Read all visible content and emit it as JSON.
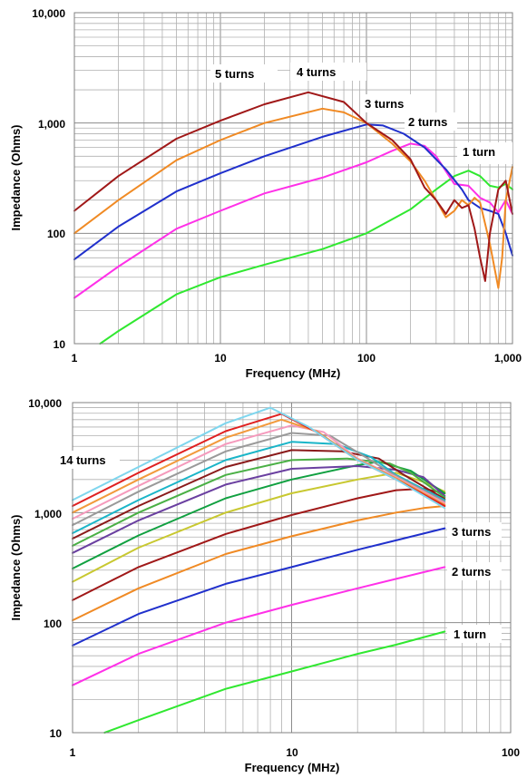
{
  "chart_data": [
    {
      "type": "line",
      "x_scale": "log",
      "y_scale": "log",
      "xlim": [
        1,
        1000
      ],
      "ylim": [
        10,
        10000
      ],
      "xlabel": "Frequency (MHz)",
      "ylabel": "Impedance (Ohms)",
      "grid": true,
      "x_tick_labels": [
        "1",
        "10",
        "100",
        "1,000"
      ],
      "y_tick_labels": [
        "10",
        "100",
        "1,000",
        "10,000"
      ],
      "annotations": [
        "5 turns",
        "4 turns",
        "3 turns",
        "2 turns",
        "1 turn"
      ],
      "series": [
        {
          "name": "5 turns",
          "color": "#a01818",
          "x": [
            1,
            2,
            5,
            10,
            20,
            40,
            70,
            100,
            150,
            200,
            250,
            300,
            350,
            400,
            450,
            500,
            550,
            600,
            650,
            700,
            800,
            900,
            1000
          ],
          "y": [
            160,
            330,
            720,
            1050,
            1480,
            1900,
            1550,
            1000,
            700,
            470,
            260,
            200,
            150,
            200,
            170,
            180,
            110,
            60,
            37,
            100,
            250,
            300,
            150
          ]
        },
        {
          "name": "4 turns",
          "color": "#f08a24",
          "x": [
            1,
            2,
            5,
            10,
            20,
            50,
            70,
            100,
            150,
            200,
            250,
            300,
            350,
            400,
            450,
            500,
            550,
            600,
            700,
            800,
            850,
            900,
            1000
          ],
          "y": [
            100,
            200,
            460,
            700,
            1000,
            1350,
            1250,
            1000,
            650,
            450,
            300,
            200,
            140,
            160,
            200,
            180,
            210,
            190,
            80,
            32,
            60,
            200,
            400
          ]
        },
        {
          "name": "3 turns",
          "color": "#2030cc",
          "x": [
            1,
            2,
            5,
            10,
            20,
            50,
            100,
            130,
            180,
            250,
            350,
            450,
            500,
            600,
            700,
            800,
            900,
            1000
          ],
          "y": [
            58,
            115,
            240,
            350,
            500,
            750,
            970,
            950,
            800,
            600,
            380,
            250,
            200,
            170,
            160,
            150,
            100,
            63
          ]
        },
        {
          "name": "2 turns",
          "color": "#ff30e8",
          "x": [
            1,
            2,
            5,
            10,
            20,
            50,
            100,
            150,
            200,
            250,
            300,
            400,
            500,
            600,
            700,
            800,
            900,
            1000
          ],
          "y": [
            26,
            50,
            110,
            160,
            230,
            320,
            440,
            560,
            650,
            620,
            500,
            280,
            270,
            210,
            190,
            155,
            200,
            150
          ]
        },
        {
          "name": "1 turn",
          "color": "#30e830",
          "x": [
            1.5,
            2,
            5,
            10,
            20,
            50,
            100,
            200,
            300,
            400,
            500,
            600,
            700,
            800,
            900,
            1000
          ],
          "y": [
            10,
            13,
            28,
            40,
            52,
            72,
            100,
            165,
            250,
            330,
            370,
            330,
            270,
            260,
            280,
            250
          ]
        }
      ]
    },
    {
      "type": "line",
      "x_scale": "log",
      "y_scale": "log",
      "xlim": [
        1,
        100
      ],
      "ylim": [
        10,
        10000
      ],
      "xlabel": "Frequency (MHz)",
      "ylabel": "Impedance (Ohms)",
      "grid": true,
      "x_tick_labels": [
        "1",
        "10",
        "100"
      ],
      "y_tick_labels": [
        "10",
        "100",
        "1,000",
        "10,000"
      ],
      "annotations": [
        "14 turns",
        "3 turns",
        "2 turns",
        "1 turn"
      ],
      "series": [
        {
          "name": "14 turns",
          "color": "#7fd6ee",
          "x": [
            1,
            2,
            5,
            8,
            12,
            20,
            30,
            50
          ],
          "y": [
            1300,
            2600,
            6500,
            9000,
            6000,
            3000,
            2000,
            1100
          ]
        },
        {
          "color": "#e02020",
          "x": [
            1,
            2,
            5,
            9,
            13,
            20,
            30,
            50
          ],
          "y": [
            1150,
            2300,
            5500,
            7900,
            5400,
            3000,
            2000,
            1150
          ]
        },
        {
          "color": "#f29a3c",
          "x": [
            1,
            2,
            5,
            9,
            13,
            20,
            30,
            50
          ],
          "y": [
            1000,
            2000,
            4800,
            7000,
            5500,
            3050,
            2050,
            1180
          ]
        },
        {
          "color": "#f59abc",
          "x": [
            1,
            2,
            5,
            10,
            14,
            20,
            30,
            50
          ],
          "y": [
            880,
            1750,
            4200,
            6200,
            5400,
            3100,
            2100,
            1220
          ]
        },
        {
          "color": "#9a9a9a",
          "x": [
            1,
            2,
            5,
            10,
            15,
            22,
            30,
            50
          ],
          "y": [
            770,
            1550,
            3600,
            5300,
            5000,
            3150,
            2150,
            1260
          ]
        },
        {
          "color": "#1ab5c8",
          "x": [
            1,
            2,
            5,
            10,
            16,
            23,
            30,
            50
          ],
          "y": [
            650,
            1300,
            3000,
            4400,
            4200,
            3200,
            2200,
            1300
          ]
        },
        {
          "color": "#8a1a1a",
          "x": [
            1,
            2,
            5,
            10,
            17,
            25,
            32,
            50
          ],
          "y": [
            580,
            1150,
            2600,
            3700,
            3600,
            3100,
            2250,
            1330
          ]
        },
        {
          "color": "#4ab045",
          "x": [
            1,
            2,
            5,
            10,
            18,
            28,
            35,
            50
          ],
          "y": [
            500,
            1000,
            2200,
            3000,
            3100,
            2800,
            2300,
            1380
          ]
        },
        {
          "color": "#6a3fa0",
          "x": [
            1,
            2,
            5,
            10,
            20,
            30,
            40,
            50
          ],
          "y": [
            430,
            850,
            1800,
            2500,
            2650,
            2450,
            2100,
            1420
          ]
        },
        {
          "color": "#10a040",
          "x": [
            1,
            2,
            5,
            10,
            20,
            25,
            35,
            50
          ],
          "y": [
            310,
            620,
            1350,
            2000,
            2700,
            2900,
            2400,
            1500
          ]
        },
        {
          "color": "#c8c830",
          "x": [
            1,
            2,
            5,
            10,
            20,
            30,
            40,
            50
          ],
          "y": [
            235,
            480,
            1000,
            1500,
            2000,
            2300,
            1900,
            1550
          ]
        },
        {
          "color": "#a01818",
          "x": [
            1,
            2,
            5,
            10,
            20,
            30,
            40,
            50
          ],
          "y": [
            160,
            320,
            640,
            950,
            1350,
            1600,
            1650,
            1500
          ]
        },
        {
          "color": "#f08a24",
          "x": [
            1,
            2,
            5,
            10,
            20,
            30,
            40,
            50
          ],
          "y": [
            105,
            205,
            420,
            610,
            850,
            1000,
            1100,
            1150
          ]
        },
        {
          "name": "3 turns",
          "color": "#2030cc",
          "x": [
            1,
            2,
            5,
            10,
            20,
            30,
            50
          ],
          "y": [
            62,
            120,
            225,
            320,
            460,
            560,
            720
          ]
        },
        {
          "name": "2 turns",
          "color": "#ff30e8",
          "x": [
            1,
            2,
            5,
            10,
            20,
            30,
            50
          ],
          "y": [
            27,
            52,
            100,
            145,
            205,
            250,
            320
          ]
        },
        {
          "name": "1 turn",
          "color": "#30e830",
          "x": [
            1.4,
            2,
            5,
            10,
            20,
            30,
            50
          ],
          "y": [
            10,
            13,
            25,
            36,
            52,
            63,
            83
          ]
        }
      ]
    }
  ]
}
